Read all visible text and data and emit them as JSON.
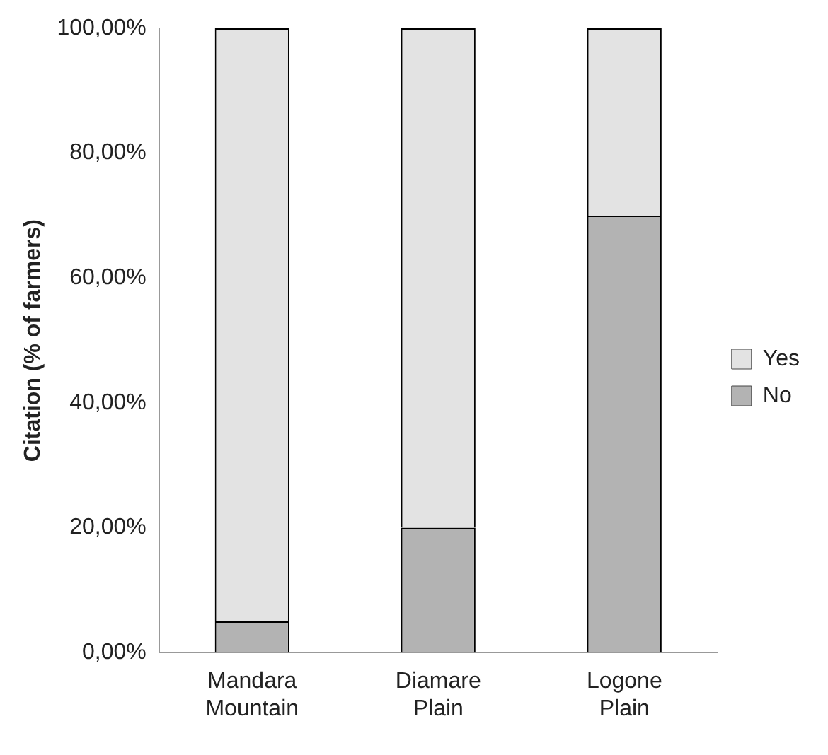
{
  "chart_data": {
    "type": "bar",
    "stacked": true,
    "ylabel": "Citation (% of farmers)",
    "categories": [
      "Mandara Mountain",
      "Diamare Plain",
      "Logone Plain"
    ],
    "series": [
      {
        "name": "No",
        "color": "#b3b3b3",
        "values": [
          5,
          20,
          70
        ]
      },
      {
        "name": "Yes",
        "color": "#e3e3e3",
        "values": [
          95,
          80,
          30
        ]
      }
    ],
    "ylim": [
      0,
      100
    ],
    "yticks": [
      {
        "value": 0,
        "label": "0,00%"
      },
      {
        "value": 20,
        "label": "20,00%"
      },
      {
        "value": 40,
        "label": "40,00%"
      },
      {
        "value": 60,
        "label": "60,00%"
      },
      {
        "value": 80,
        "label": "80,00%"
      },
      {
        "value": 100,
        "label": "100,00%"
      }
    ],
    "grid": false,
    "legend": "right"
  }
}
